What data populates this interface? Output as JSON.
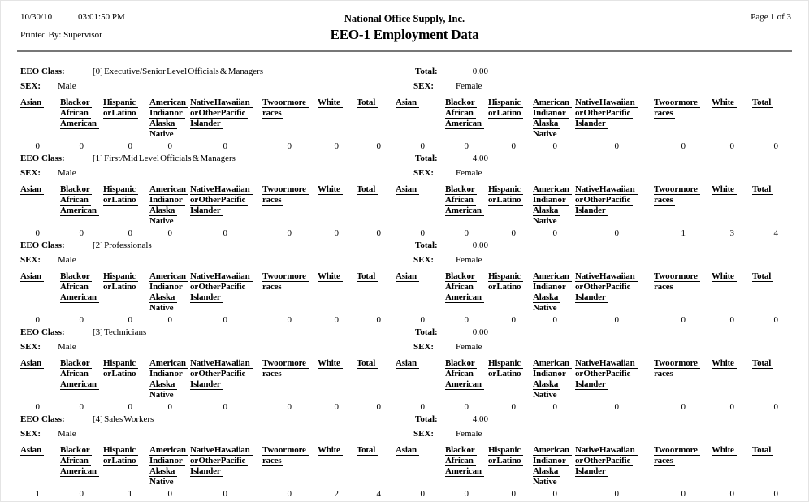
{
  "header": {
    "date": "10/30/10",
    "time": "03:01:50 PM",
    "printed_by_label": "Printed By:",
    "printed_by_value": "Supervisor",
    "company": "National Office Supply, Inc.",
    "title": "EEO-1 Employment Data",
    "page": "Page 1 of 3"
  },
  "labels": {
    "eeo_class": "EEO Class:",
    "sex": "SEX:",
    "total": "Total:"
  },
  "columns": [
    {
      "name": "asian",
      "lines": [
        {
          "text": "Asian",
          "underline": true
        }
      ]
    },
    {
      "name": "black-or-african-american",
      "lines": [
        {
          "text": "Black or",
          "underline": true
        },
        {
          "text": "African",
          "underline": true
        },
        {
          "text": "American",
          "underline": true
        }
      ]
    },
    {
      "name": "hispanic-or-latino",
      "lines": [
        {
          "text": "Hispanic",
          "underline": true
        },
        {
          "text": "or Latino",
          "underline": true
        }
      ]
    },
    {
      "name": "american-indian-or-alaska-native",
      "lines": [
        {
          "text": "American",
          "underline": true
        },
        {
          "text": "Indian or",
          "underline": true
        },
        {
          "text": "Alaska",
          "underline": true
        },
        {
          "text": "Native",
          "underline": false
        }
      ]
    },
    {
      "name": "native-hawaiian-or-other-pacific-islander",
      "lines": [
        {
          "text": "Native Hawaiian",
          "underline": true
        },
        {
          "text": "or Other Pacific",
          "underline": true
        },
        {
          "text": "Islander",
          "underline": true
        }
      ]
    },
    {
      "name": "two-or-more-races",
      "lines": [
        {
          "text": "Two or more",
          "underline": true
        },
        {
          "text": "races",
          "underline": true
        }
      ]
    },
    {
      "name": "white",
      "lines": [
        {
          "text": "White",
          "underline": true
        }
      ]
    },
    {
      "name": "total",
      "lines": [
        {
          "text": "Total",
          "underline": true
        }
      ]
    }
  ],
  "sections": [
    {
      "eeo_class": "[0] Executive/Senior Level Officials & Managers",
      "total": "0.00",
      "groups": [
        {
          "sex": "Male",
          "values": [
            0,
            0,
            0,
            0,
            0,
            0,
            0,
            0
          ]
        },
        {
          "sex": "Female",
          "values": [
            0,
            0,
            0,
            0,
            0,
            0,
            0,
            0
          ]
        }
      ]
    },
    {
      "eeo_class": "[1] First/Mid Level Officials & Managers",
      "total": "4.00",
      "groups": [
        {
          "sex": "Male",
          "values": [
            0,
            0,
            0,
            0,
            0,
            0,
            0,
            0
          ]
        },
        {
          "sex": "Female",
          "values": [
            0,
            0,
            0,
            0,
            0,
            1,
            3,
            4
          ]
        }
      ]
    },
    {
      "eeo_class": "[2] Professionals",
      "total": "0.00",
      "groups": [
        {
          "sex": "Male",
          "values": [
            0,
            0,
            0,
            0,
            0,
            0,
            0,
            0
          ]
        },
        {
          "sex": "Female",
          "values": [
            0,
            0,
            0,
            0,
            0,
            0,
            0,
            0
          ]
        }
      ]
    },
    {
      "eeo_class": "[3] Technicians",
      "total": "0.00",
      "groups": [
        {
          "sex": "Male",
          "values": [
            0,
            0,
            0,
            0,
            0,
            0,
            0,
            0
          ]
        },
        {
          "sex": "Female",
          "values": [
            0,
            0,
            0,
            0,
            0,
            0,
            0,
            0
          ]
        }
      ]
    },
    {
      "eeo_class": "[4] Sales Workers",
      "total": "4.00",
      "groups": [
        {
          "sex": "Male",
          "values": [
            1,
            0,
            1,
            0,
            0,
            0,
            2,
            4
          ]
        },
        {
          "sex": "Female",
          "values": [
            0,
            0,
            0,
            0,
            0,
            0,
            0,
            0
          ]
        }
      ]
    }
  ]
}
